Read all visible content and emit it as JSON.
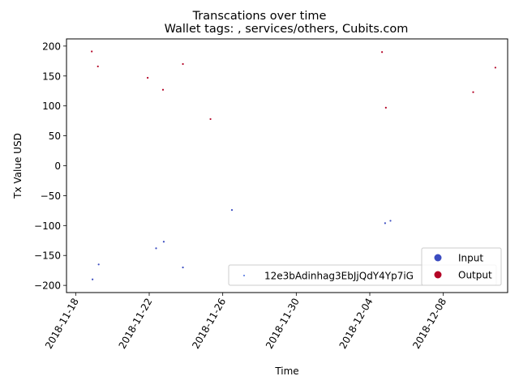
{
  "chart_data": {
    "type": "scatter",
    "suptitle": "Transcations over time",
    "title": "Wallet tags: , services/others, Cubits.com",
    "xlabel": "Time",
    "ylabel": "Tx Value USD",
    "xlim": [
      "2018-11-17T12:00",
      "2018-12-11T12:00"
    ],
    "ylim": [
      -212,
      212
    ],
    "x_ticks": [
      "2018-11-18",
      "2018-11-22",
      "2018-11-26",
      "2018-11-30",
      "2018-12-04",
      "2018-12-08"
    ],
    "y_ticks": [
      -200,
      -150,
      -100,
      -50,
      0,
      50,
      100,
      150,
      200
    ],
    "grid": false,
    "legends": [
      {
        "placement": "lower-center",
        "entries": [
          {
            "label": "12e3bAdinhag3EbJjQdY4Yp7iG",
            "color": "#4a6fe0",
            "marker": "small-dot"
          }
        ]
      },
      {
        "placement": "lower-right",
        "entries": [
          {
            "label": "Input",
            "color": "#3b4cc0",
            "marker": "dot"
          },
          {
            "label": "Output",
            "color": "#b40426",
            "marker": "dot"
          }
        ]
      }
    ],
    "series": [
      {
        "name": "Input",
        "color": "#3b4cc0",
        "points": [
          {
            "x": "2018-11-18T22:00",
            "y": -190
          },
          {
            "x": "2018-11-19T06:00",
            "y": -165
          },
          {
            "x": "2018-11-22T09:00",
            "y": -138
          },
          {
            "x": "2018-11-22T19:00",
            "y": -127
          },
          {
            "x": "2018-11-23T20:00",
            "y": -170
          },
          {
            "x": "2018-11-26T12:00",
            "y": -74
          },
          {
            "x": "2018-12-04T20:00",
            "y": -96
          },
          {
            "x": "2018-12-05T03:00",
            "y": -92
          }
        ]
      },
      {
        "name": "Output",
        "color": "#b40426",
        "points": [
          {
            "x": "2018-11-18T21:00",
            "y": 191
          },
          {
            "x": "2018-11-19T05:00",
            "y": 166
          },
          {
            "x": "2018-11-21T22:00",
            "y": 147
          },
          {
            "x": "2018-11-22T18:00",
            "y": 127
          },
          {
            "x": "2018-11-23T20:00",
            "y": 170
          },
          {
            "x": "2018-11-25T08:00",
            "y": 78
          },
          {
            "x": "2018-12-04T16:00",
            "y": 190
          },
          {
            "x": "2018-12-04T21:00",
            "y": 97
          },
          {
            "x": "2018-12-09T15:00",
            "y": 123
          },
          {
            "x": "2018-12-10T20:00",
            "y": 164
          }
        ]
      }
    ]
  }
}
